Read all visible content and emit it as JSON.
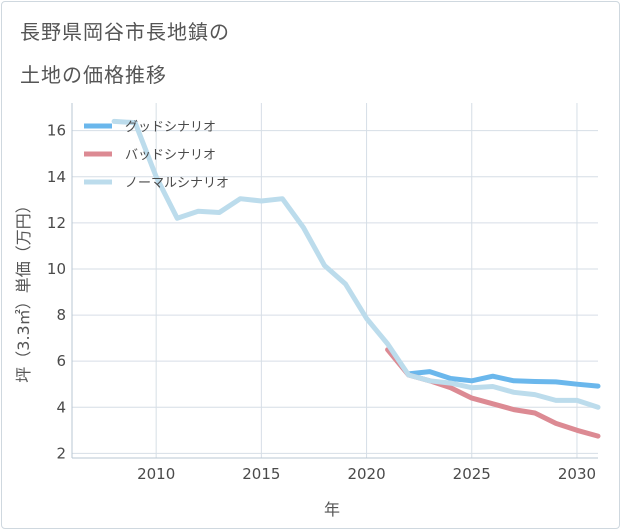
{
  "title": {
    "line1": "長野県岡谷市長地鎮の",
    "line2": "土地の価格推移"
  },
  "colors": {
    "good": "#6ab7ec",
    "bad": "#dc8a93",
    "normal": "#bcdcec",
    "grid": "#d6dee6",
    "axis": "#b9c7d3"
  },
  "chart_data": {
    "type": "line",
    "xlabel": "年",
    "ylabel": "坪（3.3㎡）単価（万円）",
    "xlim": [
      2006,
      2031
    ],
    "ylim": [
      1.8,
      17.2
    ],
    "xticks": [
      2010,
      2015,
      2020,
      2025,
      2030
    ],
    "yticks": [
      2,
      4,
      6,
      8,
      10,
      12,
      14,
      16
    ],
    "legend_position": "top-left",
    "series": [
      {
        "key": "good",
        "name": "グッドシナリオ",
        "x": [
          2022,
          2023,
          2024,
          2025,
          2026,
          2027,
          2028,
          2029,
          2030,
          2031
        ],
        "y": [
          5.45,
          5.55,
          5.25,
          5.15,
          5.35,
          5.15,
          5.12,
          5.1,
          5.0,
          4.92
        ]
      },
      {
        "key": "bad",
        "name": "バッドシナリオ",
        "x": [
          2021,
          2022,
          2023,
          2024,
          2025,
          2026,
          2027,
          2028,
          2029,
          2030,
          2031
        ],
        "y": [
          6.5,
          5.4,
          5.15,
          4.85,
          4.4,
          4.15,
          3.9,
          3.75,
          3.3,
          3.0,
          2.75
        ]
      },
      {
        "key": "normal",
        "name": "ノーマルシナリオ",
        "x": [
          2008,
          2009,
          2010,
          2011,
          2012,
          2013,
          2014,
          2015,
          2016,
          2017,
          2018,
          2019,
          2020,
          2021,
          2022,
          2023,
          2024,
          2025,
          2026,
          2027,
          2028,
          2029,
          2030,
          2031
        ],
        "y": [
          16.4,
          16.35,
          14.0,
          12.2,
          12.5,
          12.45,
          13.05,
          12.95,
          13.05,
          11.8,
          10.15,
          9.35,
          7.85,
          6.75,
          5.4,
          5.15,
          5.05,
          4.85,
          4.9,
          4.65,
          4.55,
          4.3,
          4.3,
          4.0
        ]
      }
    ]
  }
}
